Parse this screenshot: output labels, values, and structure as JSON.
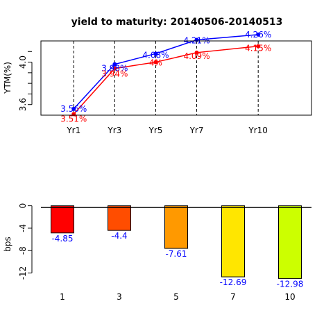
{
  "chart_data": [
    {
      "type": "line",
      "title": "yield to maturity: 20140506-20140513",
      "ylabel": "YTM(%)",
      "xlabel": "",
      "categories": [
        "Yr1",
        "Yr3",
        "Yr5",
        "Yr7",
        "Yr10"
      ],
      "x": [
        1,
        3,
        5,
        7,
        10
      ],
      "xlim": [
        -0.6,
        12.6
      ],
      "ylim": [
        3.5,
        4.2
      ],
      "yticks": [
        "3.6",
        "4.0"
      ],
      "yticks_values": [
        3.6,
        4.0
      ],
      "series": [
        {
          "color": "#0000ff",
          "values": [
            3.56,
            3.98,
            4.08,
            4.21,
            4.26
          ],
          "labels": [
            "3.56%",
            "3.98%",
            "4.08%",
            "4.21%",
            "4.26%"
          ]
        },
        {
          "color": "#ff0000",
          "values": [
            3.51,
            3.94,
            4.0,
            4.09,
            4.15
          ],
          "labels": [
            "3.51%",
            "3.94%",
            "4%",
            "4.09%",
            "4.15%"
          ]
        }
      ]
    },
    {
      "type": "bar",
      "title": "",
      "ylabel": "bps",
      "xlabel": "",
      "categories": [
        "1",
        "3",
        "5",
        "7",
        "10"
      ],
      "values": [
        -4.85,
        -4.4,
        -7.61,
        -12.69,
        -12.98
      ],
      "labels": [
        "-4.85",
        "-4.4",
        "-7.61",
        "-12.69",
        "-12.98"
      ],
      "colors": [
        "#ff0000",
        "#ff4d00",
        "#ff9900",
        "#ffe600",
        "#ccff00"
      ],
      "label_color": "#0000ff",
      "ylim": [
        -13.3,
        0.2
      ],
      "yticks": [
        "0",
        "-4",
        "-8",
        "-12"
      ],
      "yticks_values": [
        0,
        -4,
        -8,
        -12
      ]
    }
  ]
}
